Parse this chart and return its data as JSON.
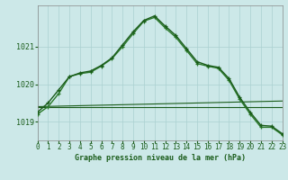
{
  "title": "Graphe pression niveau de la mer (hPa)",
  "background_color": "#cce8e8",
  "grid_color": "#aad0d0",
  "line_color_dark": "#1a5c1a",
  "line_color_mid": "#2a7a2a",
  "xlim": [
    0,
    23
  ],
  "ylim": [
    1018.5,
    1022.1
  ],
  "yticks": [
    1019,
    1020,
    1021
  ],
  "xticks": [
    0,
    1,
    2,
    3,
    4,
    5,
    6,
    7,
    8,
    9,
    10,
    11,
    12,
    13,
    14,
    15,
    16,
    17,
    18,
    19,
    20,
    21,
    22,
    23
  ],
  "series1_x": [
    0,
    1,
    2,
    3,
    4,
    5,
    6,
    7,
    8,
    9,
    10,
    11,
    12,
    13,
    14,
    15,
    16,
    17,
    18,
    19,
    20,
    21,
    22,
    23
  ],
  "series1_y": [
    1019.25,
    1019.5,
    1019.85,
    1020.2,
    1020.3,
    1020.35,
    1020.5,
    1020.7,
    1021.05,
    1021.4,
    1021.7,
    1021.82,
    1021.55,
    1021.3,
    1020.95,
    1020.6,
    1020.5,
    1020.45,
    1020.15,
    1019.65,
    1019.25,
    1018.9,
    1018.88,
    1018.68
  ],
  "series2_x": [
    0,
    1,
    2,
    3,
    4,
    5,
    6,
    7,
    8,
    9,
    10,
    11,
    12,
    13,
    14,
    15,
    16,
    17,
    18,
    19,
    20,
    21,
    22,
    23
  ],
  "series2_y": [
    1019.2,
    1019.4,
    1019.75,
    1020.2,
    1020.28,
    1020.32,
    1020.48,
    1020.68,
    1021.0,
    1021.35,
    1021.68,
    1021.78,
    1021.5,
    1021.25,
    1020.9,
    1020.55,
    1020.48,
    1020.42,
    1020.1,
    1019.6,
    1019.2,
    1018.85,
    1018.85,
    1018.65
  ],
  "series3_x": [
    0,
    23
  ],
  "series3_y": [
    1019.4,
    1019.55
  ],
  "series4_x": [
    0,
    23
  ],
  "series4_y": [
    1019.38,
    1019.38
  ],
  "tick_fontsize": 5.5,
  "label_fontsize": 6.0
}
